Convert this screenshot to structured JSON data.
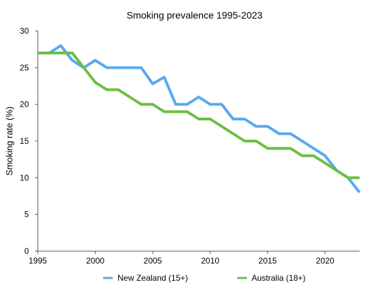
{
  "chart_data": {
    "type": "line",
    "title": "Smoking prevalence 1995-2023",
    "xlabel": "",
    "ylabel": "Smoking rate (%)",
    "xlim": [
      1995,
      2023
    ],
    "ylim": [
      0,
      30
    ],
    "x_ticks": [
      1995,
      2000,
      2005,
      2010,
      2015,
      2020
    ],
    "y_ticks": [
      0,
      5,
      10,
      15,
      20,
      25,
      30
    ],
    "grid": false,
    "legend_position": "bottom",
    "series": [
      {
        "name": "New Zealand (15+)",
        "color": "#5aa9ef",
        "points": [
          [
            1995,
            27
          ],
          [
            1996,
            27
          ],
          [
            1997,
            28
          ],
          [
            1998,
            26
          ],
          [
            1999,
            25
          ],
          [
            2000,
            26
          ],
          [
            2001,
            25
          ],
          [
            2002,
            25
          ],
          [
            2003,
            25
          ],
          [
            2004,
            25
          ],
          [
            2005,
            22.8
          ],
          [
            2006,
            23.7
          ],
          [
            2007,
            20
          ],
          [
            2008,
            20
          ],
          [
            2009,
            21
          ],
          [
            2010,
            20
          ],
          [
            2011,
            20
          ],
          [
            2012,
            18
          ],
          [
            2013,
            18
          ],
          [
            2014,
            17
          ],
          [
            2015,
            17
          ],
          [
            2016,
            16
          ],
          [
            2017,
            16
          ],
          [
            2018,
            15
          ],
          [
            2019,
            14
          ],
          [
            2020,
            13
          ],
          [
            2021,
            11
          ],
          [
            2022,
            10
          ],
          [
            2023,
            8
          ]
        ]
      },
      {
        "name": "Australia (18+)",
        "color": "#6cbf45",
        "points": [
          [
            1995,
            27
          ],
          [
            1996,
            27
          ],
          [
            1997,
            27
          ],
          [
            1998,
            27
          ],
          [
            1999,
            25
          ],
          [
            2000,
            23
          ],
          [
            2001,
            22
          ],
          [
            2002,
            22
          ],
          [
            2003,
            21
          ],
          [
            2004,
            20
          ],
          [
            2005,
            20
          ],
          [
            2006,
            19
          ],
          [
            2007,
            19
          ],
          [
            2008,
            19
          ],
          [
            2009,
            18
          ],
          [
            2010,
            18
          ],
          [
            2011,
            17
          ],
          [
            2012,
            16
          ],
          [
            2013,
            15
          ],
          [
            2014,
            15
          ],
          [
            2015,
            14
          ],
          [
            2016,
            14
          ],
          [
            2017,
            14
          ],
          [
            2018,
            13
          ],
          [
            2019,
            13
          ],
          [
            2020,
            12
          ],
          [
            2021,
            11
          ],
          [
            2022,
            10
          ],
          [
            2023,
            10
          ]
        ]
      }
    ]
  }
}
